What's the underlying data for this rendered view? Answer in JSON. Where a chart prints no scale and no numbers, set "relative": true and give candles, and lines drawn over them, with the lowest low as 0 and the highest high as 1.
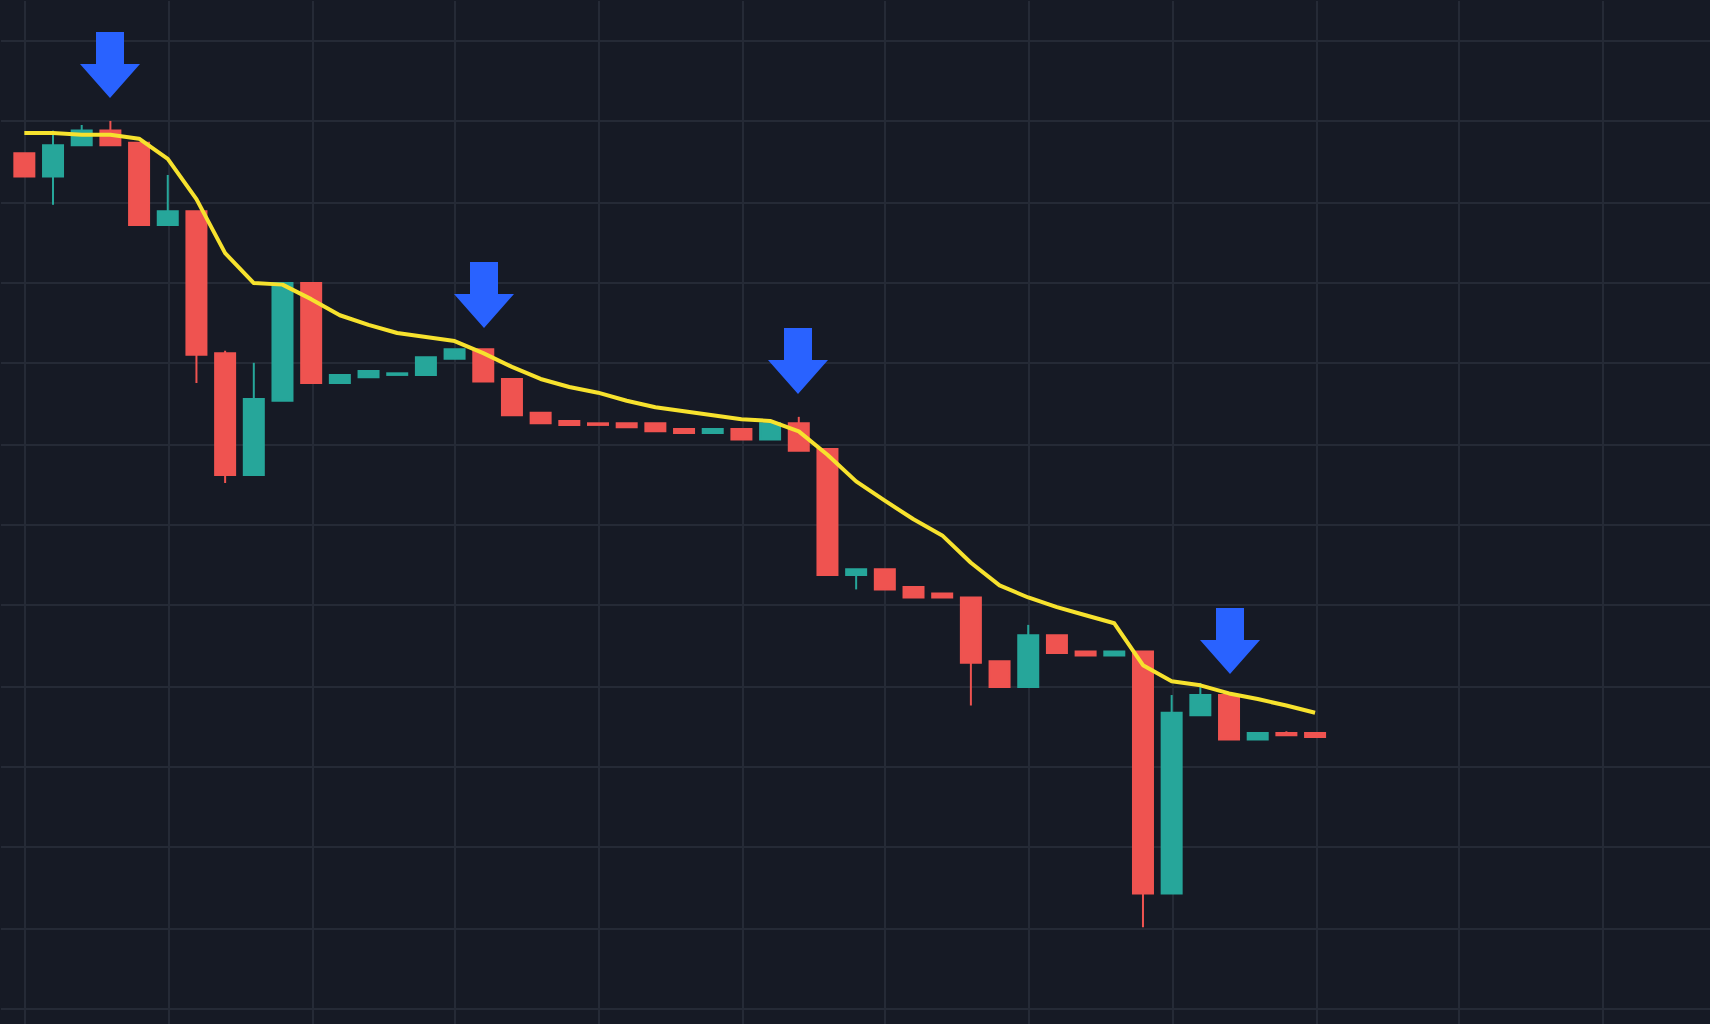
{
  "chart_data": {
    "type": "candlestick",
    "relative": true,
    "grid": true,
    "categories": [
      null,
      null,
      null,
      null,
      null,
      null,
      null,
      null,
      null,
      null,
      null,
      null,
      null,
      null,
      null,
      null,
      null,
      null,
      null,
      null,
      null,
      null,
      null,
      null,
      null,
      null,
      null,
      null,
      null,
      null,
      null,
      null,
      null,
      null,
      null,
      null,
      null,
      null,
      null,
      null,
      null,
      null,
      null,
      null,
      null,
      null
    ],
    "ohlc": [
      [
        0.96,
        0.96,
        0.931,
        0.931
      ],
      [
        0.931,
        0.988,
        0.896,
        0.97
      ],
      [
        0.97,
        0.995,
        0.97,
        0.988
      ],
      [
        0.988,
        1,
        0.97,
        0.97
      ],
      [
        0.973,
        0.973,
        0.871,
        0.871
      ],
      [
        0.871,
        0.933,
        0.871,
        0.888
      ],
      [
        0.888,
        0.888,
        0.675,
        0.71
      ],
      [
        0.712,
        0.715,
        0.551,
        0.561
      ],
      [
        0.561,
        0.7,
        0.561,
        0.655
      ],
      [
        0.653,
        0.799,
        0.653,
        0.799
      ],
      [
        0.799,
        0.799,
        0.675,
        0.675
      ],
      [
        0.675,
        0.685,
        0.675,
        0.685
      ],
      [
        0.682,
        0.69,
        0.682,
        0.69
      ],
      [
        0.685,
        0.687,
        0.685,
        0.687
      ],
      [
        0.685,
        0.707,
        0.685,
        0.707
      ],
      [
        0.705,
        0.717,
        0.705,
        0.717
      ],
      [
        0.717,
        0.717,
        0.677,
        0.677
      ],
      [
        0.68,
        0.68,
        0.635,
        0.635
      ],
      [
        0.638,
        0.638,
        0.625,
        0.625
      ],
      [
        0.628,
        0.628,
        0.623,
        0.623
      ],
      [
        0.625,
        0.625,
        0.623,
        0.623
      ],
      [
        0.625,
        0.625,
        0.62,
        0.62
      ],
      [
        0.625,
        0.625,
        0.615,
        0.615
      ],
      [
        0.618,
        0.618,
        0.613,
        0.613
      ],
      [
        0.613,
        0.618,
        0.613,
        0.618
      ],
      [
        0.618,
        0.618,
        0.605,
        0.605
      ],
      [
        0.605,
        0.625,
        0.605,
        0.625
      ],
      [
        0.625,
        0.633,
        0.591,
        0.591
      ],
      [
        0.593,
        0.593,
        0.437,
        0.437
      ],
      [
        0.437,
        0.444,
        0.419,
        0.444
      ],
      [
        0.444,
        0.444,
        0.419,
        0.419
      ],
      [
        0.422,
        0.422,
        0.409,
        0.409
      ],
      [
        0.414,
        0.414,
        0.409,
        0.409
      ],
      [
        0.409,
        0.409,
        0.275,
        0.328
      ],
      [
        0.33,
        0.33,
        0.298,
        0.298
      ],
      [
        0.298,
        0.375,
        0.298,
        0.362
      ],
      [
        0.362,
        0.362,
        0.34,
        0.34
      ],
      [
        0.342,
        0.342,
        0.337,
        0.337
      ],
      [
        0.337,
        0.342,
        0.337,
        0.342
      ],
      [
        0.342,
        0.342,
        0,
        0.042
      ],
      [
        0.042,
        0.288,
        0.042,
        0.266
      ],
      [
        0.263,
        0.303,
        0.263,
        0.288
      ],
      [
        0.288,
        0.288,
        0.233,
        0.233
      ],
      [
        0.233,
        0.241,
        0.233,
        0.241
      ],
      [
        0.241,
        0.243,
        0.238,
        0.238
      ],
      [
        0.241,
        0.241,
        0.236,
        0.236
      ]
    ],
    "colors": [
      "#ef5350",
      "#26a69a",
      "#26a69a",
      "#ef5350",
      "#ef5350",
      "#26a69a",
      "#ef5350",
      "#ef5350",
      "#26a69a",
      "#26a69a",
      "#ef5350",
      "#26a69a",
      "#26a69a",
      "#26a69a",
      "#26a69a",
      "#26a69a",
      "#ef5350",
      "#ef5350",
      "#ef5350",
      "#ef5350",
      "#ef5350",
      "#ef5350",
      "#ef5350",
      "#ef5350",
      "#26a69a",
      "#ef5350",
      "#26a69a",
      "#ef5350",
      "#ef5350",
      "#26a69a",
      "#ef5350",
      "#ef5350",
      "#ef5350",
      "#ef5350",
      "#ef5350",
      "#26a69a",
      "#ef5350",
      "#ef5350",
      "#26a69a",
      "#ef5350",
      "#26a69a",
      "#26a69a",
      "#ef5350",
      "#26a69a",
      "#ef5350",
      "#ef5350"
    ],
    "series": [
      {
        "type": "line",
        "color": "#f7e22e",
        "values": [
          0.985,
          0.985,
          0.983,
          0.983,
          0.978,
          0.953,
          0.903,
          0.836,
          0.799,
          0.797,
          0.779,
          0.759,
          0.747,
          0.737,
          0.732,
          0.727,
          0.712,
          0.695,
          0.68,
          0.67,
          0.663,
          0.653,
          0.645,
          0.64,
          0.635,
          0.63,
          0.628,
          0.615,
          0.586,
          0.553,
          0.529,
          0.506,
          0.486,
          0.452,
          0.424,
          0.409,
          0.397,
          0.387,
          0.377,
          0.325,
          0.305,
          0.3,
          0.29,
          0.283,
          0.275,
          0.266
        ]
      }
    ]
  }
}
